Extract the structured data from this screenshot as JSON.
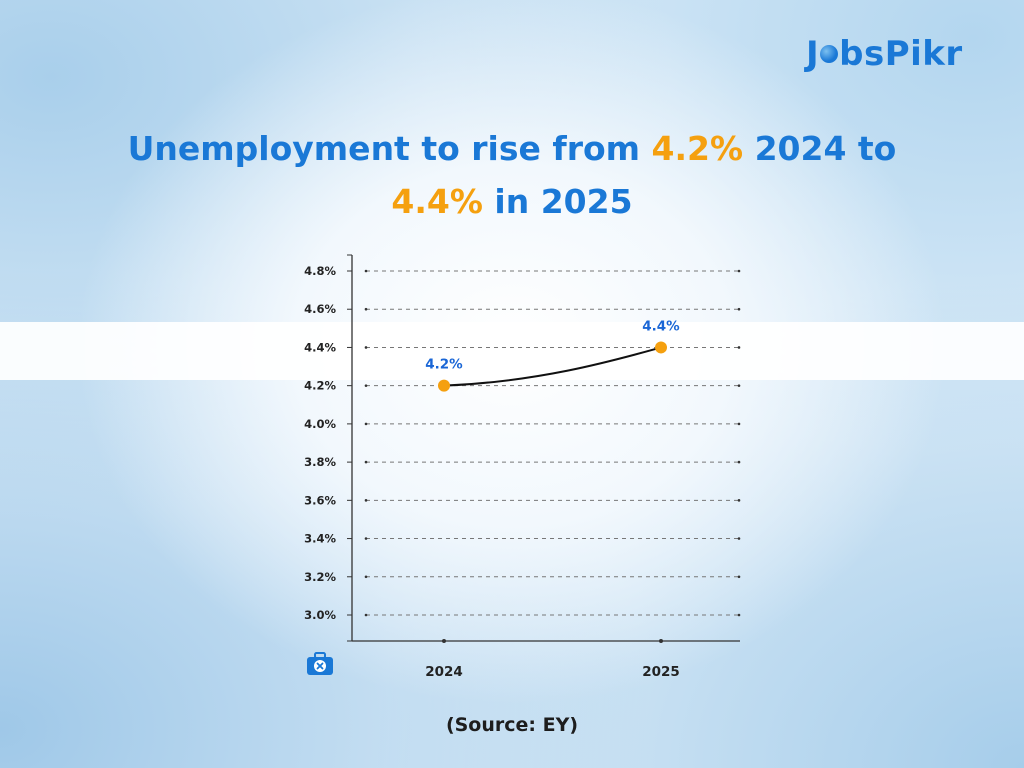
{
  "brand": {
    "logo_text_pre": "J",
    "logo_text_post": "bsPikr"
  },
  "headline": {
    "part1": "Unemployment to rise from ",
    "hl1": "4.2%",
    "part2": " 2024 to",
    "hl2": "4.4%",
    "part3": " in 2025"
  },
  "source": "(Source: EY)",
  "colors": {
    "brand_blue": "#1a78d6",
    "accent_orange": "#f5a00f",
    "label_blue": "#1a66d6"
  },
  "icons": {
    "corner": "briefcase-x-icon"
  },
  "chart_data": {
    "type": "line",
    "x": [
      "2024",
      "2025"
    ],
    "series": [
      {
        "values": [
          4.2,
          4.4
        ]
      }
    ],
    "data_labels": [
      "4.2%",
      "4.4%"
    ],
    "y_ticks": [
      "3.0%",
      "3.2%",
      "3.4%",
      "3.6%",
      "3.8%",
      "4.0%",
      "4.2%",
      "4.4%",
      "4.6%",
      "4.8%"
    ],
    "ylim": [
      3.0,
      4.8
    ],
    "grid": true,
    "title": "",
    "xlabel": "",
    "ylabel": ""
  }
}
